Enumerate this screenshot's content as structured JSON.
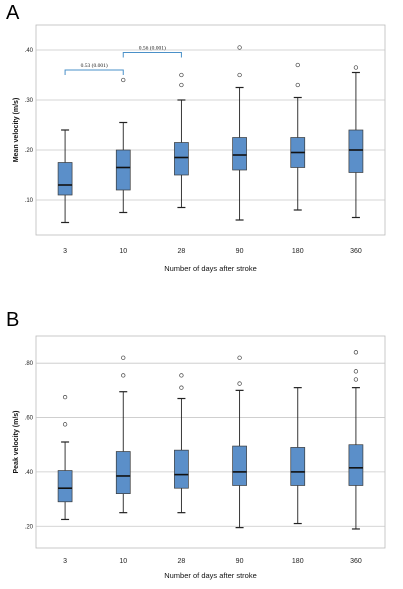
{
  "panels": [
    {
      "label": "A"
    },
    {
      "label": "B"
    }
  ],
  "chart_data": [
    {
      "type": "box",
      "panel": "A",
      "categories": [
        "3",
        "10",
        "28",
        "90",
        "180",
        "360"
      ],
      "xlabel": "Number of days after stroke",
      "ylabel": "Mean velocity",
      "yunit": "(m/s)",
      "ylim": [
        3,
        45
      ],
      "yticks": [
        10,
        20,
        30,
        40
      ],
      "ytick_labels": [
        ".10",
        ".20",
        ".30",
        ".40"
      ],
      "grid": "horizontal",
      "box_color": "#5b8fc9",
      "boxes": [
        {
          "min": 5.5,
          "q1": 11,
          "median": 13,
          "q3": 17.5,
          "max": 24,
          "outliers": []
        },
        {
          "min": 7.5,
          "q1": 12,
          "median": 16.5,
          "q3": 20,
          "max": 25.5,
          "outliers": [
            34
          ]
        },
        {
          "min": 8.5,
          "q1": 15,
          "median": 18.5,
          "q3": 21.5,
          "max": 30,
          "outliers": [
            33,
            35
          ]
        },
        {
          "min": 6,
          "q1": 16,
          "median": 19,
          "q3": 22.5,
          "max": 32.5,
          "outliers": [
            35,
            40.5
          ]
        },
        {
          "min": 8,
          "q1": 16.5,
          "median": 19.5,
          "q3": 22.5,
          "max": 30.5,
          "outliers": [
            33,
            37
          ]
        },
        {
          "min": 6.5,
          "q1": 15.5,
          "median": 20,
          "q3": 24,
          "max": 35.5,
          "outliers": [
            36.5
          ]
        }
      ],
      "annotations": [
        {
          "text": "0.53 (0.001)",
          "from": 0,
          "to": 1,
          "y": 36
        },
        {
          "text": "0.56 (0.001)",
          "from": 1,
          "to": 2,
          "y": 39.5
        }
      ]
    },
    {
      "type": "box",
      "panel": "B",
      "categories": [
        "3",
        "10",
        "28",
        "90",
        "180",
        "360"
      ],
      "xlabel": "Number of days after stroke",
      "ylabel": "Peak velocity",
      "yunit": "(m/s)",
      "ylim": [
        12,
        90
      ],
      "yticks": [
        20,
        40,
        60,
        80
      ],
      "ytick_labels": [
        ".20",
        ".40",
        ".60",
        ".80"
      ],
      "grid": "horizontal",
      "box_color": "#5b8fc9",
      "boxes": [
        {
          "min": 22.5,
          "q1": 29,
          "median": 34,
          "q3": 40.5,
          "max": 51,
          "outliers": [
            57.5,
            67.5
          ]
        },
        {
          "min": 25,
          "q1": 32,
          "median": 38.5,
          "q3": 47.5,
          "max": 69.5,
          "outliers": [
            75.5,
            82
          ]
        },
        {
          "min": 25,
          "q1": 34,
          "median": 39,
          "q3": 48,
          "max": 67,
          "outliers": [
            71,
            75.5
          ]
        },
        {
          "min": 19.5,
          "q1": 35,
          "median": 40,
          "q3": 49.5,
          "max": 70,
          "outliers": [
            72.5,
            82
          ]
        },
        {
          "min": 21,
          "q1": 35,
          "median": 40,
          "q3": 49,
          "max": 71,
          "outliers": []
        },
        {
          "min": 19,
          "q1": 35,
          "median": 41.5,
          "q3": 50,
          "max": 71,
          "outliers": [
            74,
            77,
            84
          ]
        }
      ],
      "annotations": []
    }
  ]
}
